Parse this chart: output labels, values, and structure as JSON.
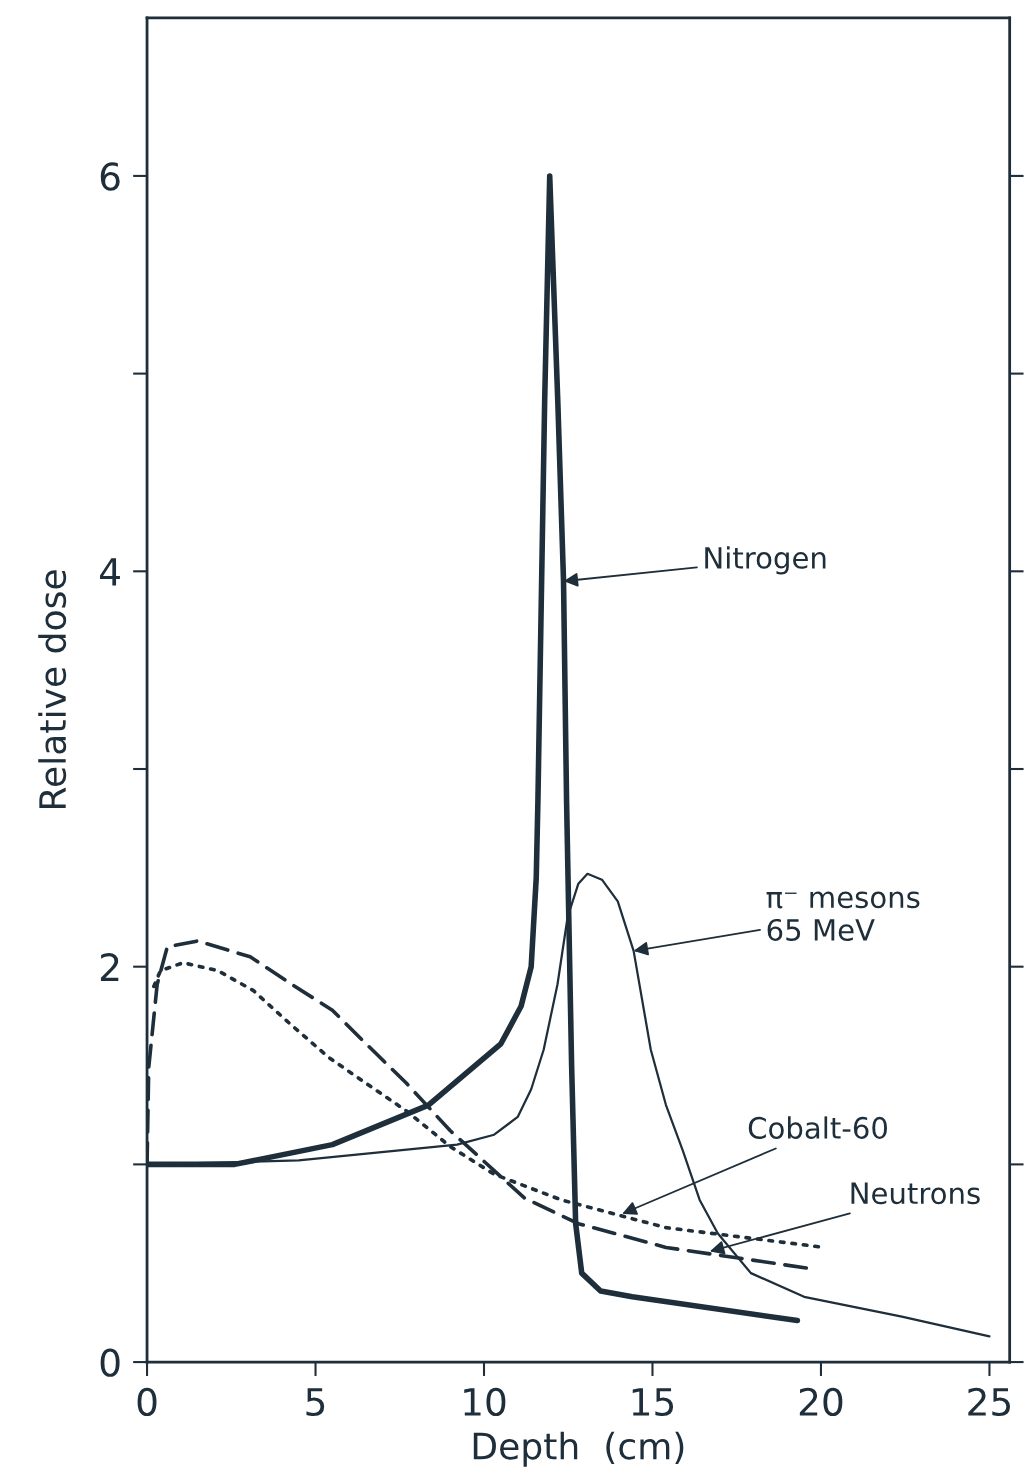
{
  "chart_data": {
    "type": "line",
    "xlabel": "Depth  (cm)",
    "ylabel": "Relative dose",
    "xlim": [
      0,
      25.6
    ],
    "ylim": [
      0,
      6.8
    ],
    "xticks": [
      0,
      5,
      10,
      15,
      20,
      25
    ],
    "yticks": [
      0,
      {
        "value": 1,
        "label": null
      },
      2,
      {
        "value": 3,
        "label": null
      },
      4,
      {
        "value": 5,
        "label": null
      },
      6
    ],
    "grid": false,
    "legend": false,
    "series": [
      {
        "color": "#1e2e3a",
        "line_style": "solid",
        "x": [
          0,
          2.6,
          5.5,
          8.35,
          10.5,
          11.1,
          11.4,
          11.55,
          11.6,
          11.8,
          11.95,
          12.19,
          12.36,
          12.45,
          12.6,
          12.72,
          12.9,
          13.46,
          14.4,
          19.3
        ],
        "values": [
          1.0,
          1.0,
          1.1,
          1.3,
          1.61,
          1.8,
          2.0,
          2.45,
          2.84,
          4.86,
          6.0,
          4.86,
          3.95,
          2.84,
          1.5,
          0.7,
          0.45,
          0.36,
          0.33,
          0.21
        ]
      },
      {
        "color": "#1e2e3a",
        "line_style": "solid",
        "x": [
          0,
          4.5,
          9.2,
          10.3,
          11.0,
          11.4,
          11.77,
          12.18,
          12.48,
          12.8,
          13.07,
          13.5,
          13.97,
          14.44,
          14.95,
          15.4,
          15.9,
          16.4,
          16.94,
          17.92,
          19.5,
          22.4,
          25.0
        ],
        "values": [
          1.0,
          1.02,
          1.1,
          1.15,
          1.24,
          1.38,
          1.58,
          1.91,
          2.25,
          2.42,
          2.47,
          2.44,
          2.33,
          2.08,
          1.58,
          1.3,
          1.07,
          0.82,
          0.65,
          0.45,
          0.33,
          0.23,
          0.13
        ]
      },
      {
        "color": "#1e2e3a",
        "line_style": "dotted",
        "x": [
          0.2,
          0.4,
          1.07,
          2.1,
          3.15,
          4.25,
          5.4,
          6.5,
          7.7,
          9.0,
          10.3,
          12.3,
          15.4,
          20.1
        ],
        "values": [
          1.9,
          1.98,
          2.02,
          1.98,
          1.88,
          1.71,
          1.54,
          1.41,
          1.27,
          1.09,
          0.95,
          0.82,
          0.68,
          0.58
        ]
      },
      {
        "color": "#1e2e3a",
        "line_style": "dashed",
        "x": [
          0,
          0.05,
          0.3,
          0.6,
          1.5,
          3.06,
          4.3,
          5.5,
          6.5,
          7.7,
          9.0,
          11.2,
          12.8,
          15.4,
          19.8
        ],
        "values": [
          1.0,
          1.49,
          1.91,
          2.1,
          2.13,
          2.05,
          1.91,
          1.78,
          1.61,
          1.41,
          1.17,
          0.83,
          0.7,
          0.58,
          0.47
        ]
      }
    ],
    "annotations": [
      {
        "text": "Nitrogen",
        "x": 12.36,
        "y": 3.95
      },
      {
        "text": "π⁻ mesons\n65 MeV",
        "x": 14.44,
        "y": 2.08
      },
      {
        "text": "Cobalt-60",
        "x": 14.1,
        "y": 0.75
      },
      {
        "text": "Neutrons",
        "x": 16.7,
        "y": 0.56
      }
    ]
  }
}
